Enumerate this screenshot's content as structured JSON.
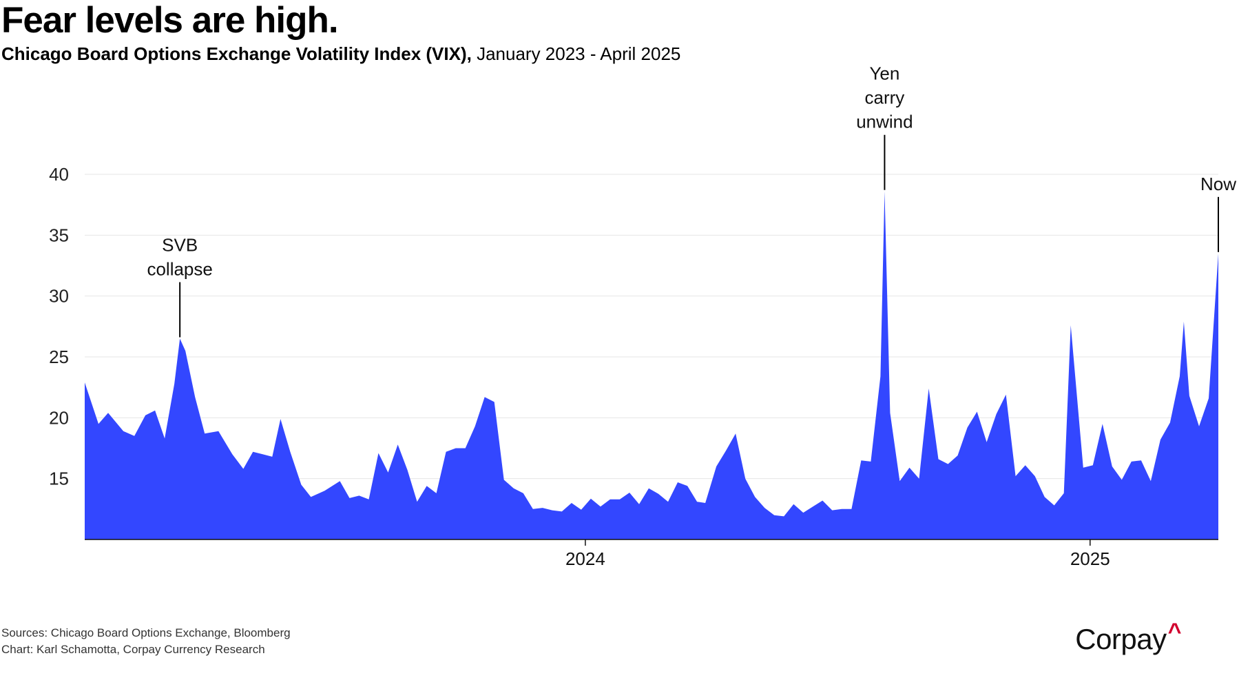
{
  "header": {
    "title": "Fear levels are high.",
    "subtitle_bold": "Chicago Board Options Exchange Volatility Index (VIX),",
    "subtitle_range": "January 2023 - April 2025"
  },
  "footer": {
    "sources": "Sources: Chicago Board Options Exchange, Bloomberg",
    "credit": "Chart: Karl Schamotta, Corpay Currency Research",
    "logo": "Corpay",
    "logo_mark": "^"
  },
  "colors": {
    "area": "#3347ff",
    "grid": "#e6e6e6",
    "axis": "#111111",
    "accent": "#d2002e"
  },
  "chart_data": {
    "type": "area",
    "title": "Fear levels are high.",
    "xlabel": "",
    "ylabel": "",
    "ylim": [
      10,
      43
    ],
    "yticks": [
      15,
      20,
      25,
      30,
      35,
      40
    ],
    "xticks": [
      {
        "date": "2024-01-01",
        "label": "2024"
      },
      {
        "date": "2025-01-01",
        "label": "2025"
      }
    ],
    "x_range": [
      "2023-01-03",
      "2025-04-04"
    ],
    "grid": true,
    "legend": "none",
    "series": [
      {
        "points": [
          [
            "2023-01-03",
            22.9
          ],
          [
            "2023-01-13",
            19.5
          ],
          [
            "2023-01-20",
            20.4
          ],
          [
            "2023-01-31",
            18.9
          ],
          [
            "2023-02-08",
            18.5
          ],
          [
            "2023-02-16",
            20.2
          ],
          [
            "2023-02-23",
            20.6
          ],
          [
            "2023-03-02",
            18.3
          ],
          [
            "2023-03-09",
            22.8
          ],
          [
            "2023-03-13",
            26.5
          ],
          [
            "2023-03-17",
            25.5
          ],
          [
            "2023-03-24",
            21.7
          ],
          [
            "2023-03-31",
            18.7
          ],
          [
            "2023-04-10",
            18.9
          ],
          [
            "2023-04-20",
            17.0
          ],
          [
            "2023-04-28",
            15.8
          ],
          [
            "2023-05-05",
            17.2
          ],
          [
            "2023-05-12",
            17.0
          ],
          [
            "2023-05-19",
            16.8
          ],
          [
            "2023-05-25",
            19.9
          ],
          [
            "2023-06-01",
            17.2
          ],
          [
            "2023-06-09",
            14.5
          ],
          [
            "2023-06-16",
            13.5
          ],
          [
            "2023-06-26",
            14.0
          ],
          [
            "2023-07-07",
            14.8
          ],
          [
            "2023-07-14",
            13.4
          ],
          [
            "2023-07-21",
            13.6
          ],
          [
            "2023-07-28",
            13.3
          ],
          [
            "2023-08-04",
            17.1
          ],
          [
            "2023-08-11",
            15.5
          ],
          [
            "2023-08-18",
            17.8
          ],
          [
            "2023-08-25",
            15.7
          ],
          [
            "2023-09-01",
            13.1
          ],
          [
            "2023-09-08",
            14.4
          ],
          [
            "2023-09-15",
            13.8
          ],
          [
            "2023-09-22",
            17.2
          ],
          [
            "2023-09-29",
            17.5
          ],
          [
            "2023-10-06",
            17.5
          ],
          [
            "2023-10-13",
            19.3
          ],
          [
            "2023-10-20",
            21.7
          ],
          [
            "2023-10-27",
            21.3
          ],
          [
            "2023-11-03",
            14.9
          ],
          [
            "2023-11-10",
            14.2
          ],
          [
            "2023-11-17",
            13.8
          ],
          [
            "2023-11-24",
            12.5
          ],
          [
            "2023-12-01",
            12.6
          ],
          [
            "2023-12-08",
            12.4
          ],
          [
            "2023-12-15",
            12.3
          ],
          [
            "2023-12-22",
            13.0
          ],
          [
            "2023-12-29",
            12.45
          ],
          [
            "2024-01-05",
            13.35
          ],
          [
            "2024-01-12",
            12.7
          ],
          [
            "2024-01-19",
            13.3
          ],
          [
            "2024-01-26",
            13.3
          ],
          [
            "2024-02-02",
            13.85
          ],
          [
            "2024-02-09",
            12.9
          ],
          [
            "2024-02-16",
            14.2
          ],
          [
            "2024-02-23",
            13.75
          ],
          [
            "2024-03-01",
            13.1
          ],
          [
            "2024-03-08",
            14.7
          ],
          [
            "2024-03-15",
            14.4
          ],
          [
            "2024-03-22",
            13.1
          ],
          [
            "2024-03-28",
            13.0
          ],
          [
            "2024-04-05",
            16.0
          ],
          [
            "2024-04-12",
            17.3
          ],
          [
            "2024-04-19",
            18.7
          ],
          [
            "2024-04-26",
            15.0
          ],
          [
            "2024-05-03",
            13.5
          ],
          [
            "2024-05-10",
            12.6
          ],
          [
            "2024-05-17",
            12.0
          ],
          [
            "2024-05-24",
            11.9
          ],
          [
            "2024-05-31",
            12.9
          ],
          [
            "2024-06-07",
            12.2
          ],
          [
            "2024-06-14",
            12.7
          ],
          [
            "2024-06-21",
            13.2
          ],
          [
            "2024-06-28",
            12.4
          ],
          [
            "2024-07-05",
            12.5
          ],
          [
            "2024-07-12",
            12.5
          ],
          [
            "2024-07-19",
            16.5
          ],
          [
            "2024-07-26",
            16.4
          ],
          [
            "2024-08-02",
            23.4
          ],
          [
            "2024-08-05",
            38.6
          ],
          [
            "2024-08-09",
            20.4
          ],
          [
            "2024-08-16",
            14.8
          ],
          [
            "2024-08-23",
            15.9
          ],
          [
            "2024-08-30",
            15.0
          ],
          [
            "2024-09-06",
            22.4
          ],
          [
            "2024-09-13",
            16.6
          ],
          [
            "2024-09-20",
            16.2
          ],
          [
            "2024-09-27",
            16.9
          ],
          [
            "2024-10-04",
            19.2
          ],
          [
            "2024-10-11",
            20.5
          ],
          [
            "2024-10-18",
            18.0
          ],
          [
            "2024-10-25",
            20.3
          ],
          [
            "2024-11-01",
            21.9
          ],
          [
            "2024-11-08",
            15.2
          ],
          [
            "2024-11-15",
            16.1
          ],
          [
            "2024-11-22",
            15.2
          ],
          [
            "2024-11-29",
            13.5
          ],
          [
            "2024-12-06",
            12.8
          ],
          [
            "2024-12-13",
            13.8
          ],
          [
            "2024-12-18",
            27.6
          ],
          [
            "2024-12-27",
            15.9
          ],
          [
            "2025-01-03",
            16.1
          ],
          [
            "2025-01-10",
            19.5
          ],
          [
            "2025-01-17",
            16.0
          ],
          [
            "2025-01-24",
            14.9
          ],
          [
            "2025-01-31",
            16.4
          ],
          [
            "2025-02-07",
            16.5
          ],
          [
            "2025-02-14",
            14.8
          ],
          [
            "2025-02-21",
            18.2
          ],
          [
            "2025-02-28",
            19.6
          ],
          [
            "2025-03-07",
            23.4
          ],
          [
            "2025-03-10",
            27.9
          ],
          [
            "2025-03-14",
            21.8
          ],
          [
            "2025-03-21",
            19.3
          ],
          [
            "2025-03-28",
            21.6
          ],
          [
            "2025-04-04",
            33.5
          ]
        ]
      }
    ],
    "annotations": [
      {
        "date": "2023-03-13",
        "value": 26.5,
        "lines": [
          "SVB",
          "collapse"
        ]
      },
      {
        "date": "2024-08-05",
        "value": 38.6,
        "lines": [
          "Yen",
          "carry",
          "unwind"
        ]
      },
      {
        "date": "2025-04-04",
        "value": 33.5,
        "lines": [
          "Now"
        ]
      }
    ]
  }
}
